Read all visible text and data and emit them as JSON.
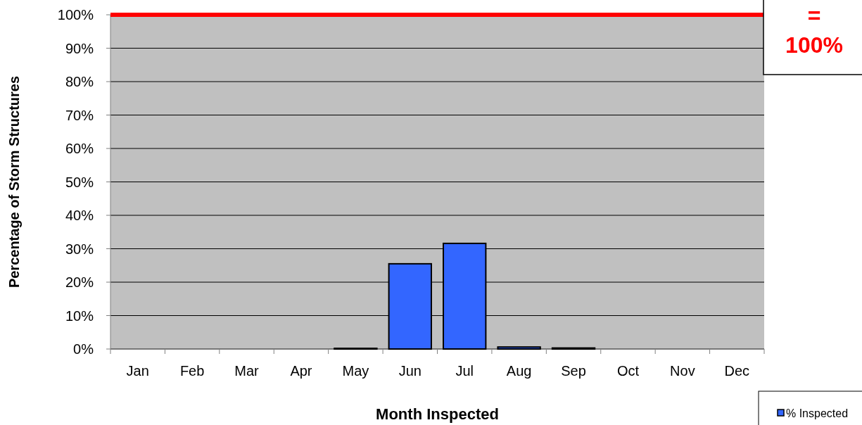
{
  "chart_data": {
    "type": "bar",
    "xlabel": "Month Inspected",
    "ylabel": "Percentage of Storm Structures",
    "categories": [
      "Jan",
      "Feb",
      "Mar",
      "Apr",
      "May",
      "Jun",
      "Jul",
      "Aug",
      "Sep",
      "Oct",
      "Nov",
      "Dec"
    ],
    "series": [
      {
        "name": "% Inspected",
        "color": "#3366ff",
        "values": [
          0,
          0,
          0,
          0,
          0.2,
          25.5,
          31.6,
          0.6,
          0.3,
          0,
          0,
          0
        ]
      }
    ],
    "ylim": [
      0,
      100
    ],
    "yticks": [
      {
        "value": 0,
        "label": "0%"
      },
      {
        "value": 10,
        "label": "10%"
      },
      {
        "value": 20,
        "label": "20%"
      },
      {
        "value": 30,
        "label": "30%"
      },
      {
        "value": 40,
        "label": "40%"
      },
      {
        "value": 50,
        "label": "50%"
      },
      {
        "value": 60,
        "label": "60%"
      },
      {
        "value": 70,
        "label": "70%"
      },
      {
        "value": 80,
        "label": "80%"
      },
      {
        "value": 90,
        "label": "90%"
      },
      {
        "value": 100,
        "label": "100%"
      }
    ],
    "ref_lines": [
      {
        "axis": "y",
        "value": 100,
        "label": "= 100%",
        "color": "#ff0000"
      }
    ],
    "grid": "y",
    "legend": "bottom right"
  }
}
